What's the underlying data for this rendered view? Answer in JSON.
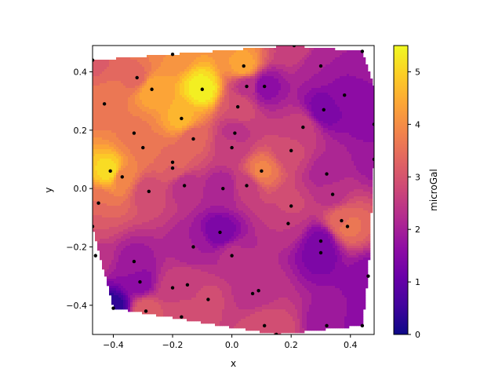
{
  "chart_data": {
    "type": "contour",
    "title": "",
    "xlabel": "x",
    "ylabel": "y",
    "xlim": [
      -0.47,
      0.48
    ],
    "ylim": [
      -0.5,
      0.49
    ],
    "x_ticks": [
      -0.4,
      -0.2,
      0.0,
      0.2,
      0.4
    ],
    "x_tick_labels": [
      "−0.4",
      "−0.2",
      "0.0",
      "0.2",
      "0.4"
    ],
    "y_ticks": [
      -0.4,
      -0.2,
      0.0,
      0.2,
      0.4
    ],
    "y_tick_labels": [
      "−0.4",
      "−0.2",
      "0.0",
      "0.2",
      "0.4"
    ],
    "colormap": "plasma",
    "grid": false,
    "colorbar": {
      "label": "microGal",
      "range": [
        0,
        5.5
      ],
      "ticks": [
        0,
        1,
        2,
        3,
        4,
        5
      ],
      "tick_labels": [
        "0",
        "1",
        "2",
        "3",
        "4",
        "5"
      ]
    },
    "hull": [
      [
        -0.47,
        0.44
      ],
      [
        -0.2,
        0.46
      ],
      [
        0.2,
        0.49
      ],
      [
        0.44,
        0.47
      ],
      [
        0.48,
        0.35
      ],
      [
        0.48,
        0.1
      ],
      [
        0.46,
        -0.3
      ],
      [
        0.44,
        -0.47
      ],
      [
        0.15,
        -0.5
      ],
      [
        -0.4,
        -0.41
      ],
      [
        -0.47,
        -0.13
      ]
    ],
    "points": [
      {
        "x": -0.47,
        "y": 0.44,
        "v": 3.2
      },
      {
        "x": -0.2,
        "y": 0.46,
        "v": 4.0
      },
      {
        "x": -0.32,
        "y": 0.38,
        "v": 3.4
      },
      {
        "x": -0.27,
        "y": 0.34,
        "v": 4.5
      },
      {
        "x": -0.1,
        "y": 0.34,
        "v": 5.4
      },
      {
        "x": 0.04,
        "y": 0.42,
        "v": 4.4
      },
      {
        "x": 0.05,
        "y": 0.35,
        "v": 2.4
      },
      {
        "x": 0.11,
        "y": 0.35,
        "v": 1.6
      },
      {
        "x": 0.21,
        "y": 0.49,
        "v": 2.7
      },
      {
        "x": 0.3,
        "y": 0.42,
        "v": 2.0
      },
      {
        "x": 0.38,
        "y": 0.32,
        "v": 1.6
      },
      {
        "x": 0.44,
        "y": 0.47,
        "v": 2.0
      },
      {
        "x": -0.43,
        "y": 0.29,
        "v": 3.6
      },
      {
        "x": -0.33,
        "y": 0.19,
        "v": 3.7
      },
      {
        "x": -0.17,
        "y": 0.24,
        "v": 4.6
      },
      {
        "x": -0.13,
        "y": 0.17,
        "v": 3.3
      },
      {
        "x": 0.02,
        "y": 0.28,
        "v": 3.0
      },
      {
        "x": 0.01,
        "y": 0.19,
        "v": 2.4
      },
      {
        "x": 0.24,
        "y": 0.21,
        "v": 2.6
      },
      {
        "x": 0.31,
        "y": 0.27,
        "v": 1.3
      },
      {
        "x": 0.48,
        "y": 0.22,
        "v": 1.6
      },
      {
        "x": -0.3,
        "y": 0.14,
        "v": 3.7
      },
      {
        "x": 0.0,
        "y": 0.14,
        "v": 2.6
      },
      {
        "x": 0.2,
        "y": 0.13,
        "v": 2.8
      },
      {
        "x": 0.48,
        "y": 0.1,
        "v": 1.9
      },
      {
        "x": -0.41,
        "y": 0.06,
        "v": 5.2
      },
      {
        "x": -0.2,
        "y": 0.09,
        "v": 3.5
      },
      {
        "x": -0.2,
        "y": 0.07,
        "v": 3.2
      },
      {
        "x": 0.1,
        "y": 0.06,
        "v": 3.8
      },
      {
        "x": 0.32,
        "y": 0.05,
        "v": 2.1
      },
      {
        "x": -0.37,
        "y": 0.04,
        "v": 3.8
      },
      {
        "x": -0.28,
        "y": -0.01,
        "v": 2.8
      },
      {
        "x": -0.16,
        "y": 0.01,
        "v": 2.3
      },
      {
        "x": -0.03,
        "y": 0.0,
        "v": 2.0
      },
      {
        "x": 0.05,
        "y": 0.01,
        "v": 2.6
      },
      {
        "x": 0.34,
        "y": -0.02,
        "v": 2.4
      },
      {
        "x": -0.45,
        "y": -0.05,
        "v": 3.5
      },
      {
        "x": 0.2,
        "y": -0.06,
        "v": 2.8
      },
      {
        "x": -0.47,
        "y": -0.13,
        "v": 3.0
      },
      {
        "x": -0.04,
        "y": -0.15,
        "v": 1.3
      },
      {
        "x": 0.19,
        "y": -0.12,
        "v": 2.5
      },
      {
        "x": 0.37,
        "y": -0.11,
        "v": 3.4
      },
      {
        "x": 0.39,
        "y": -0.13,
        "v": 3.6
      },
      {
        "x": -0.46,
        "y": -0.23,
        "v": 2.4
      },
      {
        "x": -0.13,
        "y": -0.2,
        "v": 2.0
      },
      {
        "x": 0.0,
        "y": -0.23,
        "v": 2.3
      },
      {
        "x": 0.3,
        "y": -0.18,
        "v": 1.4
      },
      {
        "x": 0.3,
        "y": -0.22,
        "v": 1.3
      },
      {
        "x": -0.33,
        "y": -0.25,
        "v": 1.9
      },
      {
        "x": -0.31,
        "y": -0.32,
        "v": 1.6
      },
      {
        "x": -0.2,
        "y": -0.34,
        "v": 2.6
      },
      {
        "x": -0.15,
        "y": -0.33,
        "v": 2.7
      },
      {
        "x": 0.07,
        "y": -0.36,
        "v": 2.4
      },
      {
        "x": 0.09,
        "y": -0.35,
        "v": 2.4
      },
      {
        "x": 0.46,
        "y": -0.3,
        "v": 1.6
      },
      {
        "x": -0.08,
        "y": -0.38,
        "v": 2.8
      },
      {
        "x": -0.4,
        "y": -0.41,
        "v": 0.3
      },
      {
        "x": -0.29,
        "y": -0.42,
        "v": 3.2
      },
      {
        "x": -0.17,
        "y": -0.44,
        "v": 3.0
      },
      {
        "x": 0.11,
        "y": -0.47,
        "v": 3.0
      },
      {
        "x": 0.32,
        "y": -0.47,
        "v": 1.8
      },
      {
        "x": 0.44,
        "y": -0.47,
        "v": 1.7
      },
      {
        "x": 0.15,
        "y": -0.5,
        "v": 2.9
      }
    ]
  }
}
